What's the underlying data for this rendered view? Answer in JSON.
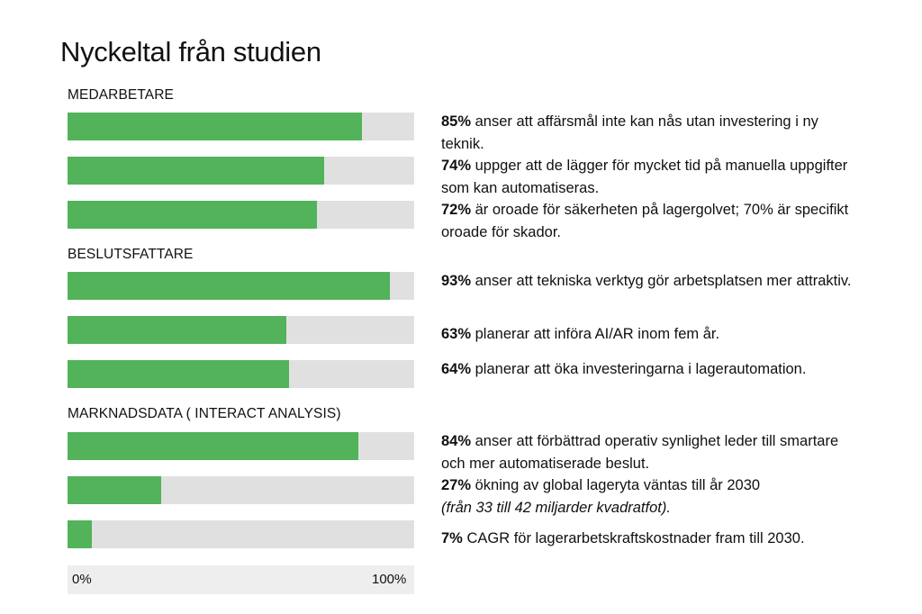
{
  "title": "Nyckeltal från studien",
  "chart_data": {
    "type": "bar",
    "orientation": "horizontal",
    "xlim": [
      0,
      100
    ],
    "axis_ticks": [
      "0%",
      "100%"
    ],
    "colors": {
      "fill": "#52b35a",
      "track": "#e0e0e0"
    },
    "groups": [
      {
        "name": "MEDARBETARE",
        "items": [
          {
            "value": 85,
            "pct": "85%",
            "text": "anser att affärsmål inte kan nås utan investering i ny teknik.",
            "note": ""
          },
          {
            "value": 74,
            "pct": "74%",
            "text": "uppger att de lägger för mycket tid på manuella uppgifter som kan automatiseras.",
            "note": ""
          },
          {
            "value": 72,
            "pct": "72%",
            "text": "är oroade för säkerheten på lagergolvet; 70% är specifikt oroade för skador.",
            "note": ""
          }
        ]
      },
      {
        "name": "BESLUTSFATTARE",
        "items": [
          {
            "value": 93,
            "pct": "93%",
            "text": "anser att tekniska verktyg gör arbetsplatsen mer attraktiv.",
            "note": ""
          },
          {
            "value": 63,
            "pct": "63%",
            "text": "planerar att införa AI/AR inom fem år.",
            "note": ""
          },
          {
            "value": 64,
            "pct": "64%",
            "text": "planerar att öka investeringarna i lagerautomation.",
            "note": ""
          }
        ]
      },
      {
        "name": "MARKNADSDATA ( INTERACT ANALYSIS)",
        "items": [
          {
            "value": 84,
            "pct": "84%",
            "text": "anser att förbättrad operativ synlighet leder till smartare och mer automatiserade beslut.",
            "note": ""
          },
          {
            "value": 27,
            "pct": "27%",
            "text": "ökning av global lageryta väntas till år 2030",
            "note": "(från 33 till 42 miljarder kvadratfot)."
          },
          {
            "value": 7,
            "pct": "7%",
            "text": "CAGR för lagerarbetskraftskostnader fram till 2030.",
            "note": ""
          }
        ]
      }
    ]
  }
}
